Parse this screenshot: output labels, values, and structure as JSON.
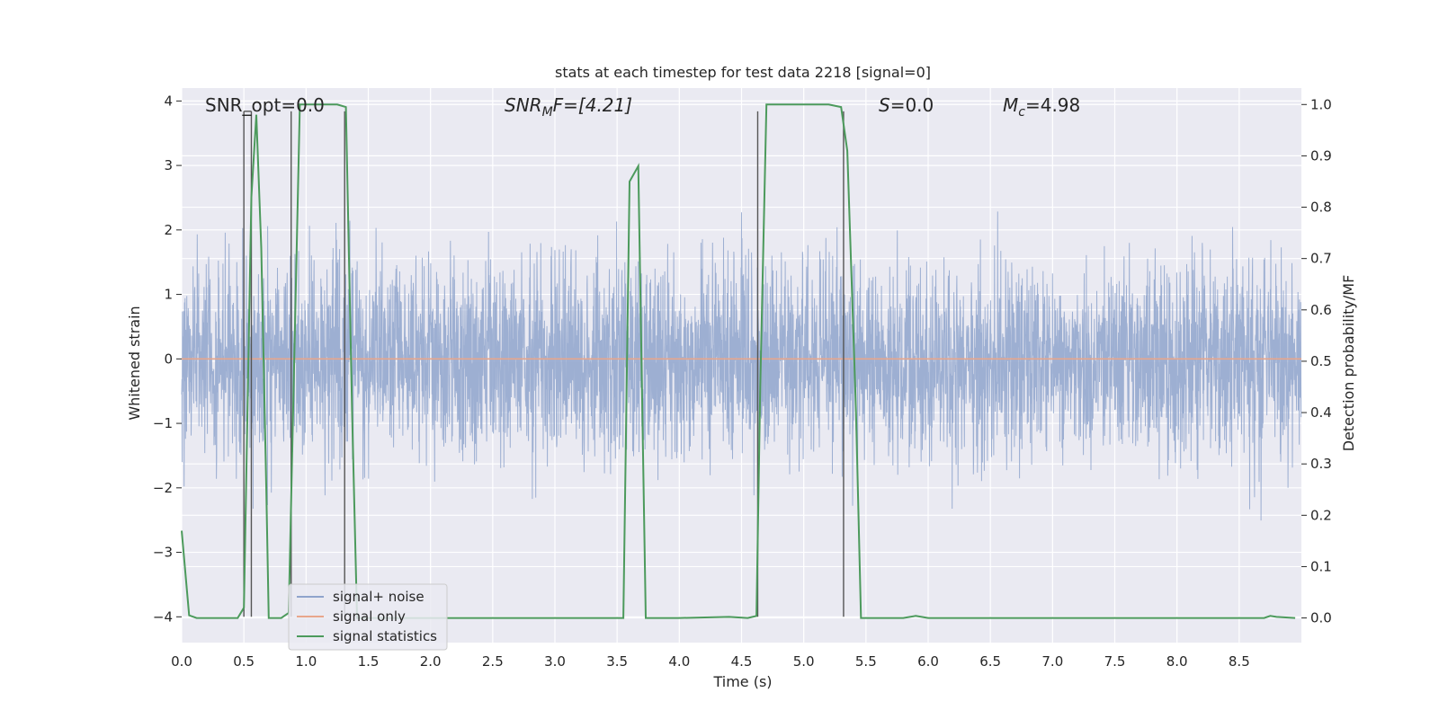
{
  "chart_data": {
    "type": "line",
    "title": "stats at each timestep for test data 2218 [signal=0]",
    "xlabel": "Time (s)",
    "ylabel": "Whitened strain",
    "y2label": "Detection probability/MF",
    "xlim": [
      0,
      9.0
    ],
    "ylim": [
      -4.4,
      4.2
    ],
    "y2lim": [
      -0.048,
      1.032
    ],
    "xticks": [
      "0.0",
      "0.5",
      "1.0",
      "1.5",
      "2.0",
      "2.5",
      "3.0",
      "3.5",
      "4.0",
      "4.5",
      "5.0",
      "5.5",
      "6.0",
      "6.5",
      "7.0",
      "7.5",
      "8.0",
      "8.5"
    ],
    "yticks": [
      "4",
      "3",
      "2",
      "1",
      "0",
      "−1",
      "−2",
      "−3",
      "−4"
    ],
    "y2ticks": [
      "1.0",
      "0.9",
      "0.8",
      "0.7",
      "0.6",
      "0.5",
      "0.4",
      "0.3",
      "0.2",
      "0.1",
      "0.0"
    ],
    "grid": true,
    "legend_position": "lower-left",
    "annotations": {
      "snr_opt": "SNR_opt=0.0",
      "snr_mf_sym": "SNR",
      "snr_mf_sub": "M",
      "snr_mf_rest": "F=[4.21]",
      "s_sym": "S",
      "s_rest": "=0.0",
      "mc_sym": "M",
      "mc_sub": "c",
      "mc_rest": "=4.98"
    },
    "series": [
      {
        "name": "signal+ noise",
        "color": "#8fa4cc",
        "amplitude_std": 0.75,
        "sample_rate": 512
      },
      {
        "name": "signal only",
        "color": "#e8a68c",
        "values": "0 everywhere"
      },
      {
        "name": "signal statistics",
        "color": "#4c9a5c",
        "axis": "right",
        "x": [
          0.0,
          0.06,
          0.12,
          0.3,
          0.45,
          0.5,
          0.56,
          0.6,
          0.64,
          0.68,
          0.7,
          0.8,
          0.86,
          0.9,
          0.95,
          1.0,
          1.25,
          1.32,
          1.37,
          1.41,
          2.0,
          3.0,
          3.55,
          3.6,
          3.67,
          3.73,
          3.8,
          4.0,
          4.4,
          4.55,
          4.62,
          4.65,
          4.7,
          4.8,
          5.2,
          5.3,
          5.35,
          5.42,
          5.46,
          5.5,
          5.8,
          5.9,
          6.0,
          7.0,
          8.0,
          8.7,
          8.75,
          8.8,
          8.95
        ],
        "y": [
          0.17,
          0.005,
          0.0,
          0.0,
          0.0,
          0.02,
          0.82,
          0.98,
          0.72,
          0.25,
          0.0,
          0.0,
          0.01,
          0.45,
          1.0,
          1.0,
          1.0,
          0.995,
          0.4,
          0.0,
          0.0,
          0.0,
          0.0,
          0.85,
          0.88,
          0.0,
          0.0,
          0.0,
          0.002,
          0.0,
          0.004,
          0.45,
          1.0,
          1.0,
          1.0,
          0.995,
          0.91,
          0.4,
          0.0,
          0.0,
          0.0,
          0.004,
          0.0,
          0.0,
          0.0,
          0.0,
          0.004,
          0.002,
          0.0
        ]
      }
    ],
    "vlines": [
      {
        "x": 0.5,
        "y_top": 3.84,
        "y_bottom": -4.0
      },
      {
        "x": 0.56,
        "y_top": 3.84,
        "y_bottom": -4.0
      },
      {
        "x": 0.88,
        "y_top": 3.84,
        "y_bottom": -4.0
      },
      {
        "x": 1.31,
        "y_top": 3.84,
        "y_bottom": -4.0
      },
      {
        "x": 4.63,
        "y_top": 3.84,
        "y_bottom": -4.0
      },
      {
        "x": 5.32,
        "y_top": 3.84,
        "y_bottom": -4.0
      }
    ]
  }
}
